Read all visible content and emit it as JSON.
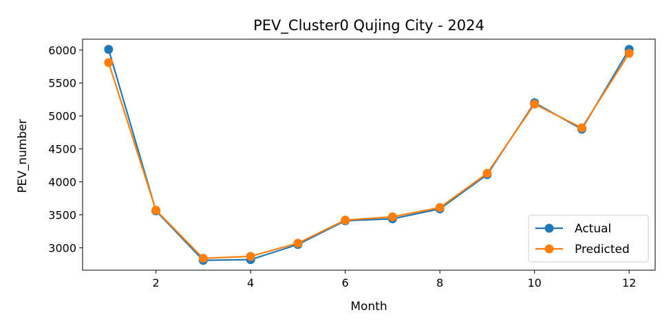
{
  "chart_data": {
    "type": "line",
    "title": "PEV_Cluster0 Qujing City - 2024",
    "xlabel": "Month",
    "ylabel": "PEV_number",
    "x": [
      1,
      2,
      3,
      4,
      5,
      6,
      7,
      8,
      9,
      10,
      11,
      12
    ],
    "xlim": [
      0.45,
      12.55
    ],
    "ylim": [
      2660,
      6165
    ],
    "xticks": [
      2,
      4,
      6,
      8,
      10,
      12
    ],
    "yticks": [
      3000,
      3500,
      4000,
      4500,
      5000,
      5500,
      6000
    ],
    "grid": false,
    "legend_position": "lower-right",
    "series": [
      {
        "name": "Actual",
        "color": "#1f77b4",
        "values": [
          6010,
          3560,
          2810,
          2820,
          3050,
          3410,
          3440,
          3590,
          4110,
          5200,
          4800,
          6010
        ]
      },
      {
        "name": "Predicted",
        "color": "#ff7f0e",
        "values": [
          5810,
          3570,
          2840,
          2870,
          3070,
          3420,
          3470,
          3610,
          4130,
          5180,
          4820,
          5950
        ]
      }
    ]
  }
}
